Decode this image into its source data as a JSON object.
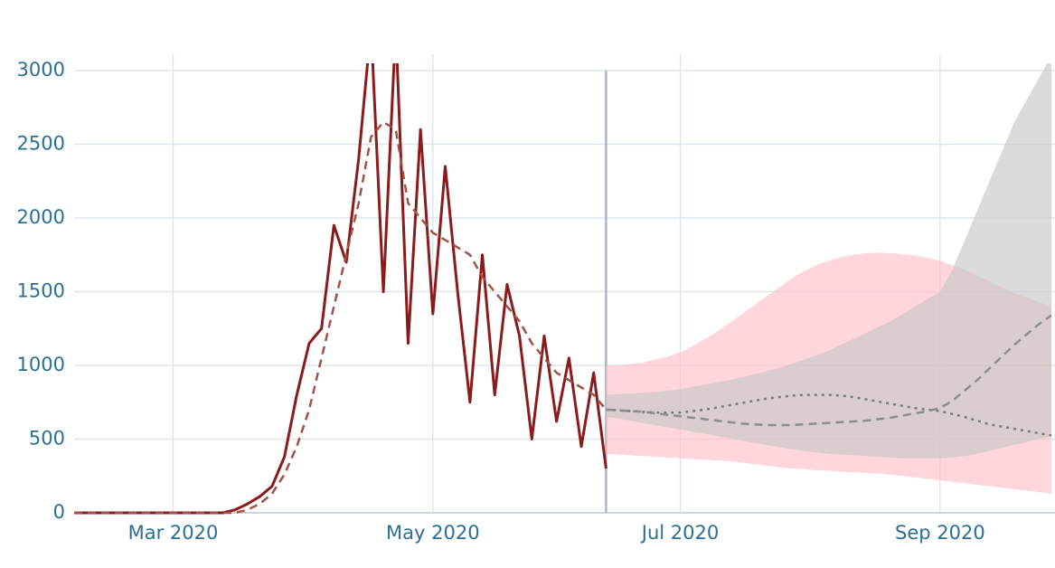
{
  "chart_data": {
    "type": "line",
    "categories": [
      null,
      null,
      null,
      null,
      null,
      null,
      null,
      null,
      "Mar 2020",
      null,
      null,
      null,
      null,
      null,
      null,
      null,
      null,
      null,
      null,
      null,
      null,
      null,
      null,
      null,
      null,
      null,
      null,
      null,
      null,
      "May 2020",
      null,
      null,
      null,
      null,
      null,
      null,
      null,
      null,
      null,
      null,
      null,
      null,
      null,
      null,
      null,
      null,
      null,
      null,
      null,
      "Jul 2020",
      null,
      null,
      null,
      null,
      null,
      null,
      null,
      null,
      null,
      null,
      null,
      null,
      null,
      null,
      null,
      null,
      null,
      null,
      null,
      null,
      "Sep 2020",
      null,
      null,
      null,
      null,
      null,
      null,
      null,
      null,
      null
    ],
    "ylim": [
      0,
      3000
    ],
    "yticks": [
      0,
      500,
      1000,
      1500,
      2000,
      2500,
      3000
    ],
    "grid": true,
    "series": [
      {
        "type": "band",
        "color": "#ffc0c8",
        "high": [
          null,
          null,
          null,
          null,
          null,
          null,
          null,
          null,
          null,
          null,
          null,
          null,
          null,
          null,
          null,
          null,
          null,
          null,
          null,
          null,
          null,
          null,
          null,
          null,
          null,
          null,
          null,
          null,
          null,
          null,
          null,
          null,
          null,
          null,
          null,
          null,
          null,
          null,
          null,
          null,
          null,
          null,
          null,
          1000,
          1000,
          1010,
          1020,
          1040,
          1060,
          1090,
          1130,
          1180,
          1230,
          1290,
          1350,
          1410,
          1470,
          1530,
          1590,
          1640,
          1680,
          1710,
          1735,
          1750,
          1760,
          1765,
          1760,
          1755,
          1745,
          1730,
          1710,
          1680,
          1650,
          1610,
          1570,
          1530,
          1490,
          1460,
          1430,
          1400
        ],
        "low": [
          null,
          null,
          null,
          null,
          null,
          null,
          null,
          null,
          null,
          null,
          null,
          null,
          null,
          null,
          null,
          null,
          null,
          null,
          null,
          null,
          null,
          null,
          null,
          null,
          null,
          null,
          null,
          null,
          null,
          null,
          null,
          null,
          null,
          null,
          null,
          null,
          null,
          null,
          null,
          null,
          null,
          null,
          null,
          400,
          395,
          390,
          385,
          380,
          375,
          370,
          365,
          360,
          355,
          350,
          340,
          330,
          320,
          310,
          300,
          295,
          290,
          285,
          280,
          275,
          270,
          265,
          260,
          250,
          240,
          230,
          220,
          210,
          200,
          190,
          180,
          170,
          160,
          150,
          140,
          130
        ]
      },
      {
        "type": "band",
        "color": "#c8c8c8",
        "high": [
          null,
          null,
          null,
          null,
          null,
          null,
          null,
          null,
          null,
          null,
          null,
          null,
          null,
          null,
          null,
          null,
          null,
          null,
          null,
          null,
          null,
          null,
          null,
          null,
          null,
          null,
          null,
          null,
          null,
          null,
          null,
          null,
          null,
          null,
          null,
          null,
          null,
          null,
          null,
          null,
          null,
          null,
          null,
          800,
          805,
          810,
          815,
          820,
          830,
          840,
          855,
          870,
          885,
          900,
          920,
          940,
          960,
          985,
          1010,
          1040,
          1070,
          1100,
          1140,
          1180,
          1220,
          1260,
          1300,
          1350,
          1400,
          1450,
          1500,
          1650,
          1850,
          2050,
          2250,
          2450,
          2650,
          2800,
          2950,
          3100
        ],
        "low": [
          null,
          null,
          null,
          null,
          null,
          null,
          null,
          null,
          null,
          null,
          null,
          null,
          null,
          null,
          null,
          null,
          null,
          null,
          null,
          null,
          null,
          null,
          null,
          null,
          null,
          null,
          null,
          null,
          null,
          null,
          null,
          null,
          null,
          null,
          null,
          null,
          null,
          null,
          null,
          null,
          null,
          null,
          null,
          650,
          640,
          625,
          610,
          595,
          580,
          565,
          550,
          535,
          520,
          505,
          490,
          475,
          460,
          445,
          430,
          420,
          410,
          400,
          395,
          390,
          385,
          380,
          375,
          370,
          370,
          370,
          370,
          375,
          385,
          400,
          420,
          440,
          460,
          480,
          500,
          520
        ]
      },
      {
        "type": "line",
        "color": "#8b1a1a",
        "dash": "solid",
        "values": [
          0,
          0,
          0,
          0,
          0,
          0,
          0,
          0,
          0,
          0,
          0,
          0,
          0,
          20,
          60,
          110,
          180,
          380,
          800,
          1150,
          1250,
          1950,
          1700,
          2400,
          3300,
          1500,
          3300,
          1150,
          2600,
          1350,
          2350,
          1500,
          750,
          1750,
          800,
          1550,
          1200,
          500,
          1200,
          620,
          1050,
          450,
          950,
          300,
          null,
          null,
          null,
          null,
          null,
          null,
          null,
          null,
          null,
          null,
          null,
          null,
          null,
          null,
          null,
          null,
          null,
          null,
          null,
          null,
          null,
          null,
          null,
          null,
          null,
          null,
          null,
          null,
          null,
          null,
          null,
          null,
          null,
          null,
          null,
          null
        ]
      },
      {
        "type": "line",
        "color": "#a0524a",
        "dash": "dashed",
        "values": [
          0,
          0,
          0,
          0,
          0,
          0,
          0,
          0,
          0,
          0,
          0,
          0,
          0,
          0,
          20,
          60,
          130,
          260,
          450,
          700,
          1050,
          1400,
          1750,
          2100,
          2550,
          2650,
          2600,
          2100,
          2000,
          1900,
          1850,
          1800,
          1750,
          1600,
          1500,
          1400,
          1300,
          1150,
          1050,
          950,
          900,
          850,
          800,
          700,
          null,
          null,
          null,
          null,
          null,
          null,
          null,
          null,
          null,
          null,
          null,
          null,
          null,
          null,
          null,
          null,
          null,
          null,
          null,
          null,
          null,
          null,
          null,
          null,
          null,
          null,
          null,
          null,
          null,
          null,
          null,
          null,
          null,
          null,
          null,
          null
        ]
      },
      {
        "type": "line",
        "color": "#7a7a7a",
        "dash": "dotted",
        "values": [
          null,
          null,
          null,
          null,
          null,
          null,
          null,
          null,
          null,
          null,
          null,
          null,
          null,
          null,
          null,
          null,
          null,
          null,
          null,
          null,
          null,
          null,
          null,
          null,
          null,
          null,
          null,
          null,
          null,
          null,
          null,
          null,
          null,
          null,
          null,
          null,
          null,
          null,
          null,
          null,
          null,
          null,
          null,
          700,
          695,
          690,
          685,
          680,
          680,
          680,
          690,
          700,
          715,
          730,
          745,
          760,
          775,
          785,
          795,
          800,
          800,
          800,
          795,
          785,
          770,
          755,
          740,
          725,
          710,
          700,
          690,
          670,
          650,
          625,
          600,
          585,
          570,
          555,
          540,
          525
        ]
      },
      {
        "type": "line",
        "color": "#8c8c8c",
        "dash": "dashed",
        "values": [
          null,
          null,
          null,
          null,
          null,
          null,
          null,
          null,
          null,
          null,
          null,
          null,
          null,
          null,
          null,
          null,
          null,
          null,
          null,
          null,
          null,
          null,
          null,
          null,
          null,
          null,
          null,
          null,
          null,
          null,
          null,
          null,
          null,
          null,
          null,
          null,
          null,
          null,
          null,
          null,
          null,
          null,
          null,
          700,
          695,
          690,
          685,
          675,
          665,
          655,
          645,
          635,
          625,
          615,
          605,
          600,
          595,
          595,
          595,
          600,
          605,
          610,
          615,
          620,
          625,
          635,
          645,
          660,
          675,
          690,
          710,
          760,
          830,
          900,
          980,
          1060,
          1140,
          1210,
          1280,
          1340
        ]
      }
    ]
  }
}
